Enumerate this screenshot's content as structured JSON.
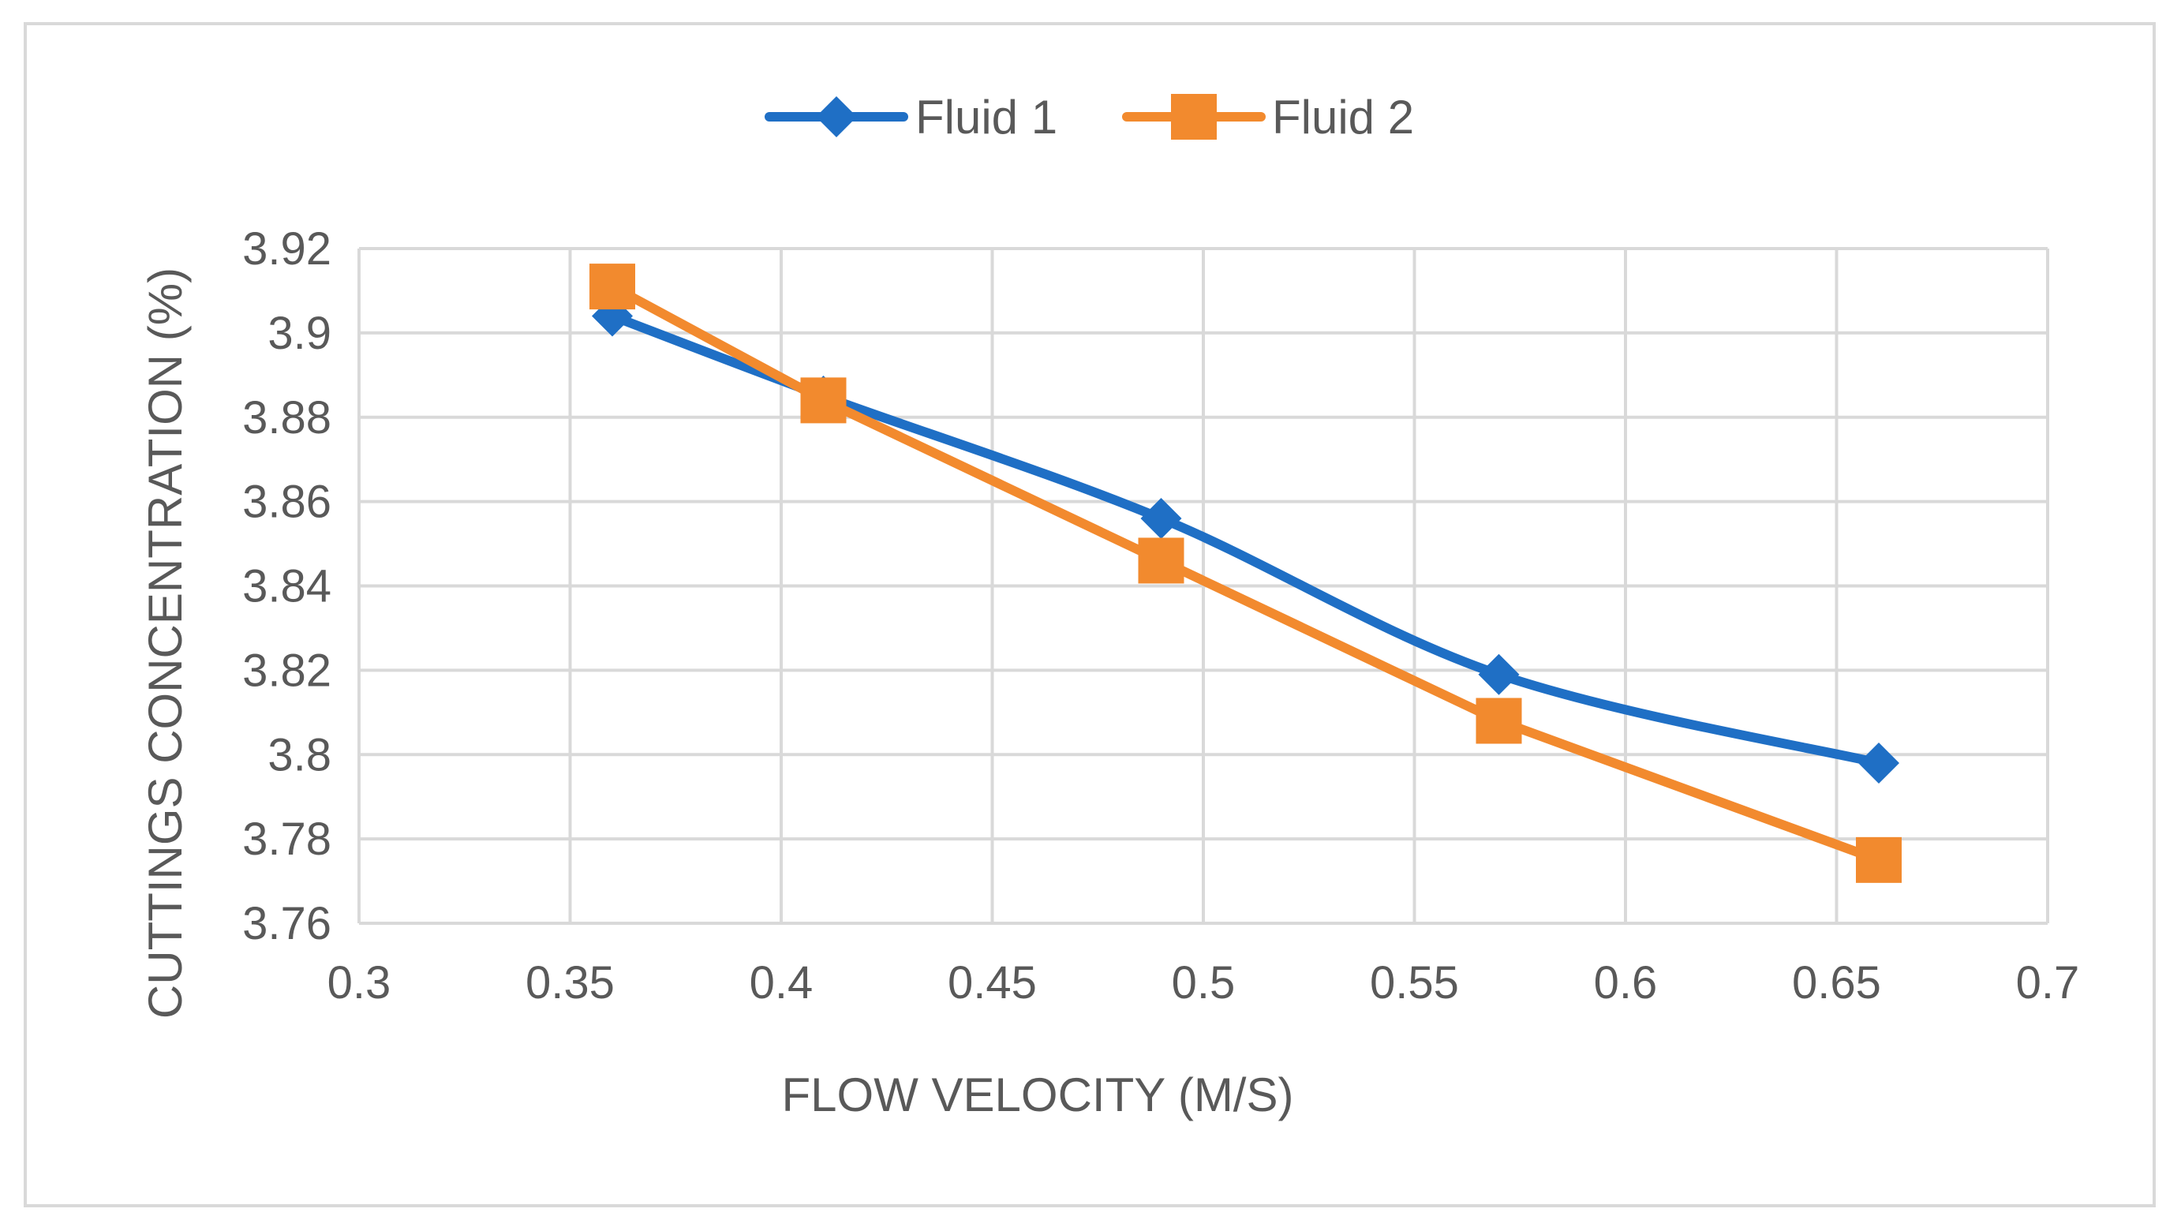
{
  "chart_data": {
    "type": "line",
    "title": "",
    "xlabel": "FLOW VELOCITY (M/S)",
    "ylabel": "CUTTINGS CONCENTRATION (%)",
    "xlim": [
      0.3,
      0.7
    ],
    "ylim": [
      3.76,
      3.92
    ],
    "x_ticks": [
      "0.3",
      "0.35",
      "0.4",
      "0.45",
      "0.5",
      "0.55",
      "0.6",
      "0.65",
      "0.7"
    ],
    "y_ticks": [
      "3.76",
      "3.78",
      "3.8",
      "3.82",
      "3.84",
      "3.86",
      "3.88",
      "3.9",
      "3.92"
    ],
    "grid": true,
    "legend_position": "top-center",
    "series": [
      {
        "name": "Fluid 1",
        "color": "#1f6fc5",
        "marker": "diamond",
        "smooth": true,
        "x": [
          0.36,
          0.41,
          0.49,
          0.57,
          0.66
        ],
        "y": [
          3.904,
          3.885,
          3.856,
          3.819,
          3.798
        ]
      },
      {
        "name": "Fluid 2",
        "color": "#f28a2e",
        "marker": "square",
        "smooth": false,
        "x": [
          0.36,
          0.41,
          0.49,
          0.57,
          0.66
        ],
        "y": [
          3.911,
          3.884,
          3.846,
          3.808,
          3.775
        ]
      }
    ]
  }
}
